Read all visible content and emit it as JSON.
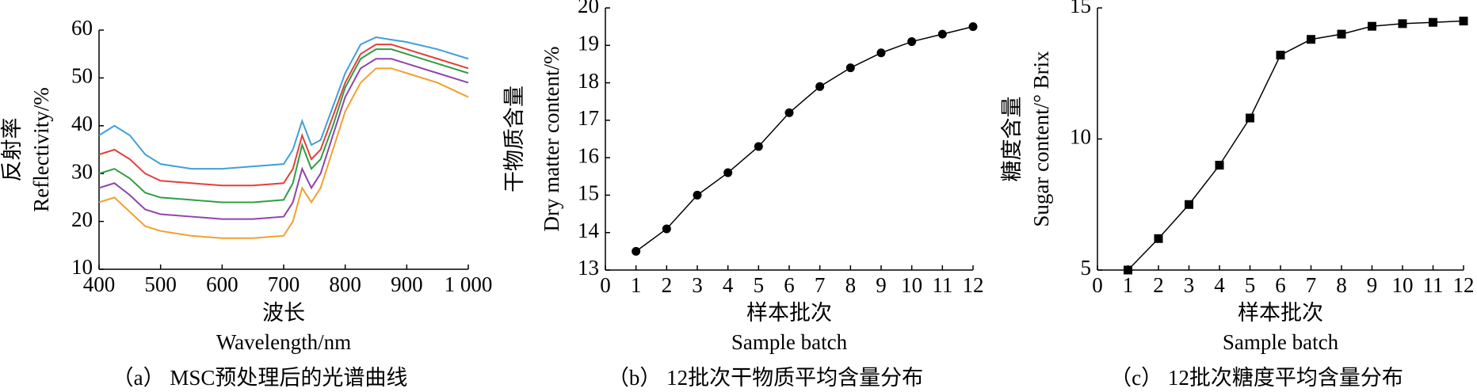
{
  "chart_data": [
    {
      "type": "line",
      "caption": "（a） MSC预处理后的光谱曲线",
      "xlabel": [
        "波长",
        "Wavelength/nm"
      ],
      "ylabel": [
        "反射率",
        "Reflectivity/%"
      ],
      "x": [
        400,
        425,
        450,
        475,
        500,
        550,
        600,
        650,
        700,
        715,
        730,
        745,
        760,
        780,
        800,
        825,
        850,
        875,
        900,
        950,
        1000
      ],
      "series": [
        {
          "color": "#3fa0d8",
          "values": [
            38,
            40,
            38,
            34,
            32,
            31,
            31,
            31.5,
            32,
            35,
            41,
            36,
            37,
            44,
            51,
            57,
            58.5,
            58,
            57.5,
            56,
            54
          ]
        },
        {
          "color": "#e0413a",
          "values": [
            34,
            35,
            33,
            30,
            28.5,
            28,
            27.5,
            27.5,
            28,
            31,
            38,
            33,
            35,
            42,
            49,
            55,
            57,
            57,
            56,
            54,
            52
          ]
        },
        {
          "color": "#2f9e44",
          "values": [
            30,
            31,
            29,
            26,
            25,
            24.5,
            24,
            24,
            24.5,
            28,
            36,
            31,
            33,
            40,
            48,
            54,
            56,
            56,
            55,
            53,
            51
          ]
        },
        {
          "color": "#8e44ad",
          "values": [
            27,
            28,
            25.5,
            22.5,
            21.5,
            21,
            20.5,
            20.5,
            21,
            24,
            31,
            27,
            30,
            38,
            46,
            52,
            54,
            54,
            53,
            51,
            49
          ]
        },
        {
          "color": "#f0a030",
          "values": [
            24,
            25,
            22,
            19,
            18,
            17,
            16.5,
            16.5,
            17,
            20,
            27,
            24,
            27,
            35,
            43,
            49,
            52,
            52,
            51,
            49,
            46
          ]
        }
      ],
      "xlim": [
        400,
        1000
      ],
      "xticks": [
        400,
        500,
        600,
        700,
        800,
        900,
        {
          "value": 1000,
          "label": "1 000"
        }
      ],
      "ylim": [
        10,
        60
      ],
      "yticks": [
        10,
        20,
        30,
        40,
        50,
        60
      ]
    },
    {
      "type": "line",
      "caption": "（b） 12批次干物质平均含量分布",
      "xlabel": [
        "样本批次",
        "Sample batch"
      ],
      "ylabel": [
        "干物质含量",
        "Dry matter content/%"
      ],
      "marker": "circle",
      "x": [
        1,
        2,
        3,
        4,
        5,
        6,
        7,
        8,
        9,
        10,
        11,
        12
      ],
      "series": [
        {
          "color": "#000000",
          "values": [
            13.5,
            14.1,
            15.0,
            15.6,
            16.3,
            17.2,
            17.9,
            18.4,
            18.8,
            19.1,
            19.3,
            19.5
          ]
        }
      ],
      "xlim": [
        0,
        12
      ],
      "xticks": [
        0,
        1,
        2,
        3,
        4,
        5,
        6,
        7,
        8,
        9,
        10,
        11,
        12
      ],
      "ylim": [
        13,
        20
      ],
      "yticks": [
        13,
        14,
        15,
        16,
        17,
        18,
        19,
        20
      ]
    },
    {
      "type": "line",
      "caption": "（c） 12批次糖度平均含量分布",
      "xlabel": [
        "样本批次",
        "Sample batch"
      ],
      "ylabel": [
        "糖度含量",
        "Sugar content/° Brix"
      ],
      "marker": "square",
      "x": [
        1,
        2,
        3,
        4,
        5,
        6,
        7,
        8,
        9,
        10,
        11,
        12
      ],
      "series": [
        {
          "color": "#000000",
          "values": [
            5.0,
            6.2,
            7.5,
            9.0,
            10.8,
            13.2,
            13.8,
            14.0,
            14.3,
            14.4,
            14.45,
            14.5
          ]
        }
      ],
      "xlim": [
        0,
        12
      ],
      "xticks": [
        0,
        1,
        2,
        3,
        4,
        5,
        6,
        7,
        8,
        9,
        10,
        11,
        12
      ],
      "ylim": [
        5,
        15
      ],
      "yticks": [
        5,
        10,
        15
      ]
    }
  ]
}
